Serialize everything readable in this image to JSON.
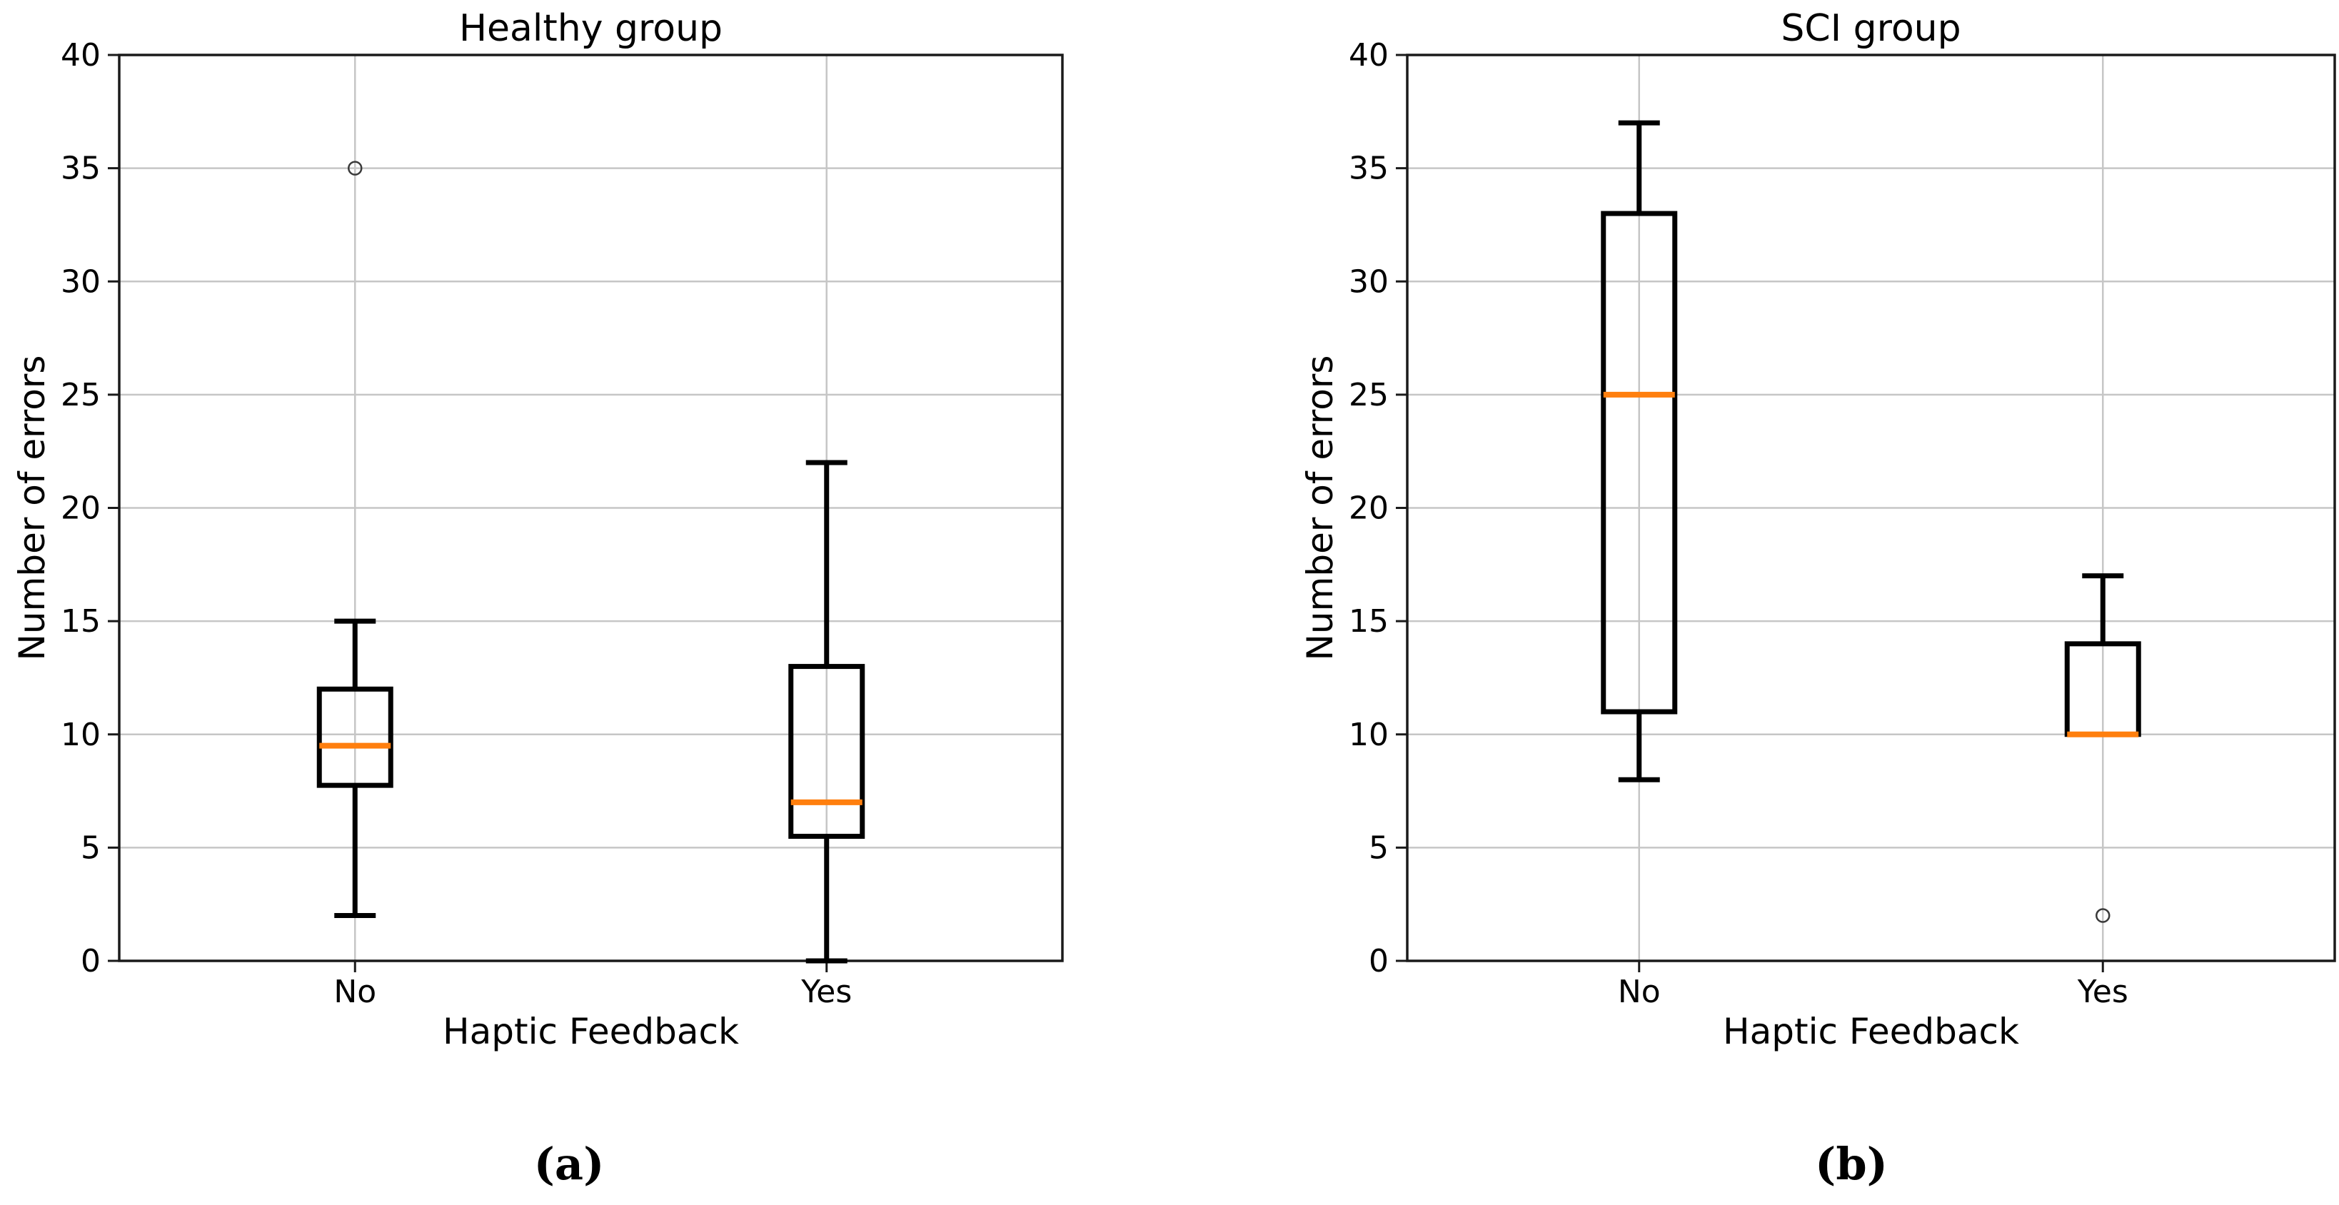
{
  "figure": {
    "caption_a": "(a)",
    "caption_b": "(b)"
  },
  "colors": {
    "box": "#000000",
    "median": "#ff7f0e",
    "grid": "#c6c6c6",
    "spine": "#1a1a1a",
    "text": "#000000",
    "outlier": "#3a3a3a",
    "background": "#ffffff"
  },
  "chart_data": [
    {
      "type": "boxplot",
      "title": "Healthy group",
      "xlabel": "Haptic Feedback",
      "ylabel": "Number of errors",
      "panel_label": "(a)",
      "ylim": [
        0,
        40
      ],
      "yticks": [
        0,
        5,
        10,
        15,
        20,
        25,
        30,
        35,
        40
      ],
      "categories": [
        "No",
        "Yes"
      ],
      "grid": true,
      "legend": "none",
      "series": [
        {
          "category": "No",
          "whisker_low": 2,
          "q1": 7.75,
          "median": 9.5,
          "q3": 12,
          "whisker_high": 15,
          "outliers": [
            35
          ]
        },
        {
          "category": "Yes",
          "whisker_low": 0,
          "q1": 5.5,
          "median": 7,
          "q3": 13,
          "whisker_high": 22,
          "outliers": []
        }
      ]
    },
    {
      "type": "boxplot",
      "title": "SCI group",
      "xlabel": "Haptic Feedback",
      "ylabel": "Number of errors",
      "panel_label": "(b)",
      "ylim": [
        0,
        40
      ],
      "yticks": [
        0,
        5,
        10,
        15,
        20,
        25,
        30,
        35,
        40
      ],
      "categories": [
        "No",
        "Yes"
      ],
      "grid": true,
      "legend": "none",
      "series": [
        {
          "category": "No",
          "whisker_low": 8,
          "q1": 11,
          "median": 25,
          "q3": 33,
          "whisker_high": 37,
          "outliers": []
        },
        {
          "category": "Yes",
          "whisker_low": 10,
          "q1": 10,
          "median": 10,
          "q3": 14,
          "whisker_high": 17,
          "outliers": [
            2
          ]
        }
      ]
    }
  ]
}
